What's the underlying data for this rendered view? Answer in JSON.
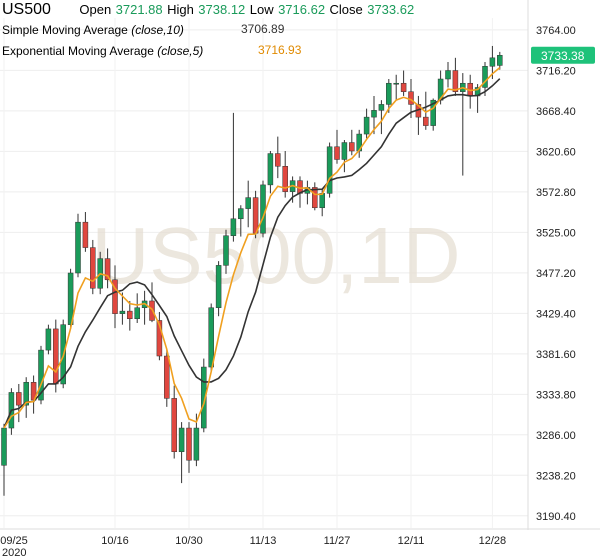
{
  "header": {
    "symbol": "US500",
    "open_label": "Open",
    "open_value": "3721.88",
    "high_label": "High",
    "high_value": "3738.12",
    "low_label": "Low",
    "low_value": "3716.62",
    "close_label": "Close",
    "close_value": "3733.62"
  },
  "indicators": {
    "sma_name": "Simple Moving Average",
    "sma_params": "(close,10)",
    "sma_value": "3706.89",
    "ema_name": "Exponential Moving Average",
    "ema_params": "(close,5)",
    "ema_value": "3716.93"
  },
  "colors": {
    "up": "#1a9b5a",
    "down": "#e0473f",
    "sma": "#333333",
    "ema": "#f0a020",
    "price_tag": "#1ec27a"
  },
  "chart_data": {
    "type": "candlestick",
    "watermark": "US500,1D",
    "price_tag": "3733.38",
    "y_ticks": [
      "3764.00",
      "3716.20",
      "3668.40",
      "3620.60",
      "3572.80",
      "3525.00",
      "3477.20",
      "3429.40",
      "3381.60",
      "3333.80",
      "3286.00",
      "3238.20",
      "3190.40"
    ],
    "x_ticks": [
      {
        "label": "09/25",
        "index": 0
      },
      {
        "label": "10/16",
        "index": 15
      },
      {
        "label": "10/30",
        "index": 25
      },
      {
        "label": "11/13",
        "index": 35
      },
      {
        "label": "11/27",
        "index": 45
      },
      {
        "label": "12/11",
        "index": 55
      },
      {
        "label": "12/28",
        "index": 66
      }
    ],
    "x_year_label": "2020",
    "ylim": [
      3176,
      3778
    ],
    "ohlc": [
      [
        3250,
        3299,
        3214,
        3294
      ],
      [
        3294,
        3341,
        3286,
        3336
      ],
      [
        3336,
        3346,
        3301,
        3321
      ],
      [
        3321,
        3354,
        3306,
        3348
      ],
      [
        3348,
        3356,
        3311,
        3327
      ],
      [
        3327,
        3391,
        3322,
        3386
      ],
      [
        3386,
        3416,
        3381,
        3411
      ],
      [
        3411,
        3422,
        3336,
        3346
      ],
      [
        3346,
        3422,
        3341,
        3416
      ],
      [
        3416,
        3482,
        3411,
        3477
      ],
      [
        3477,
        3547,
        3472,
        3537
      ],
      [
        3537,
        3549,
        3502,
        3507
      ],
      [
        3507,
        3516,
        3452,
        3459
      ],
      [
        3459,
        3502,
        3452,
        3494
      ],
      [
        3494,
        3506,
        3459,
        3469
      ],
      [
        3469,
        3486,
        3412,
        3429
      ],
      [
        3429,
        3454,
        3416,
        3432
      ],
      [
        3432,
        3444,
        3409,
        3423
      ],
      [
        3423,
        3453,
        3418,
        3436
      ],
      [
        3436,
        3456,
        3416,
        3444
      ],
      [
        3444,
        3466,
        3419,
        3421
      ],
      [
        3421,
        3431,
        3374,
        3379
      ],
      [
        3379,
        3386,
        3319,
        3329
      ],
      [
        3329,
        3344,
        3258,
        3266
      ],
      [
        3266,
        3301,
        3229,
        3294
      ],
      [
        3294,
        3301,
        3241,
        3256
      ],
      [
        3256,
        3311,
        3249,
        3294
      ],
      [
        3294,
        3376,
        3289,
        3366
      ],
      [
        3366,
        3441,
        3361,
        3436
      ],
      [
        3436,
        3491,
        3426,
        3486
      ],
      [
        3486,
        3528,
        3476,
        3521
      ],
      [
        3521,
        3666,
        3514,
        3541
      ],
      [
        3541,
        3557,
        3520,
        3553
      ],
      [
        3553,
        3586,
        3531,
        3566
      ],
      [
        3566,
        3574,
        3518,
        3524
      ],
      [
        3524,
        3586,
        3519,
        3581
      ],
      [
        3581,
        3621,
        3571,
        3618
      ],
      [
        3618,
        3638,
        3589,
        3603
      ],
      [
        3603,
        3621,
        3566,
        3573
      ],
      [
        3573,
        3591,
        3560,
        3586
      ],
      [
        3586,
        3591,
        3554,
        3571
      ],
      [
        3571,
        3586,
        3558,
        3578
      ],
      [
        3578,
        3584,
        3551,
        3554
      ],
      [
        3554,
        3576,
        3544,
        3571
      ],
      [
        3571,
        3631,
        3566,
        3626
      ],
      [
        3626,
        3646,
        3606,
        3611
      ],
      [
        3611,
        3634,
        3596,
        3631
      ],
      [
        3631,
        3646,
        3616,
        3621
      ],
      [
        3621,
        3646,
        3613,
        3641
      ],
      [
        3641,
        3671,
        3636,
        3661
      ],
      [
        3661,
        3686,
        3641,
        3669
      ],
      [
        3669,
        3681,
        3641,
        3676
      ],
      [
        3676,
        3706,
        3666,
        3701
      ],
      [
        3701,
        3711,
        3681,
        3701
      ],
      [
        3701,
        3716,
        3686,
        3691
      ],
      [
        3691,
        3706,
        3660,
        3676
      ],
      [
        3676,
        3686,
        3640,
        3661
      ],
      [
        3661,
        3691,
        3646,
        3651
      ],
      [
        3651,
        3683,
        3645,
        3681
      ],
      [
        3681,
        3716,
        3676,
        3706
      ],
      [
        3706,
        3726,
        3696,
        3716
      ],
      [
        3716,
        3731,
        3686,
        3691
      ],
      [
        3691,
        3713,
        3592,
        3701
      ],
      [
        3701,
        3711,
        3671,
        3686
      ],
      [
        3686,
        3700,
        3666,
        3696
      ],
      [
        3696,
        3726,
        3686,
        3721
      ],
      [
        3721,
        3745,
        3706,
        3731
      ],
      [
        3722,
        3738,
        3717,
        3734
      ]
    ]
  }
}
